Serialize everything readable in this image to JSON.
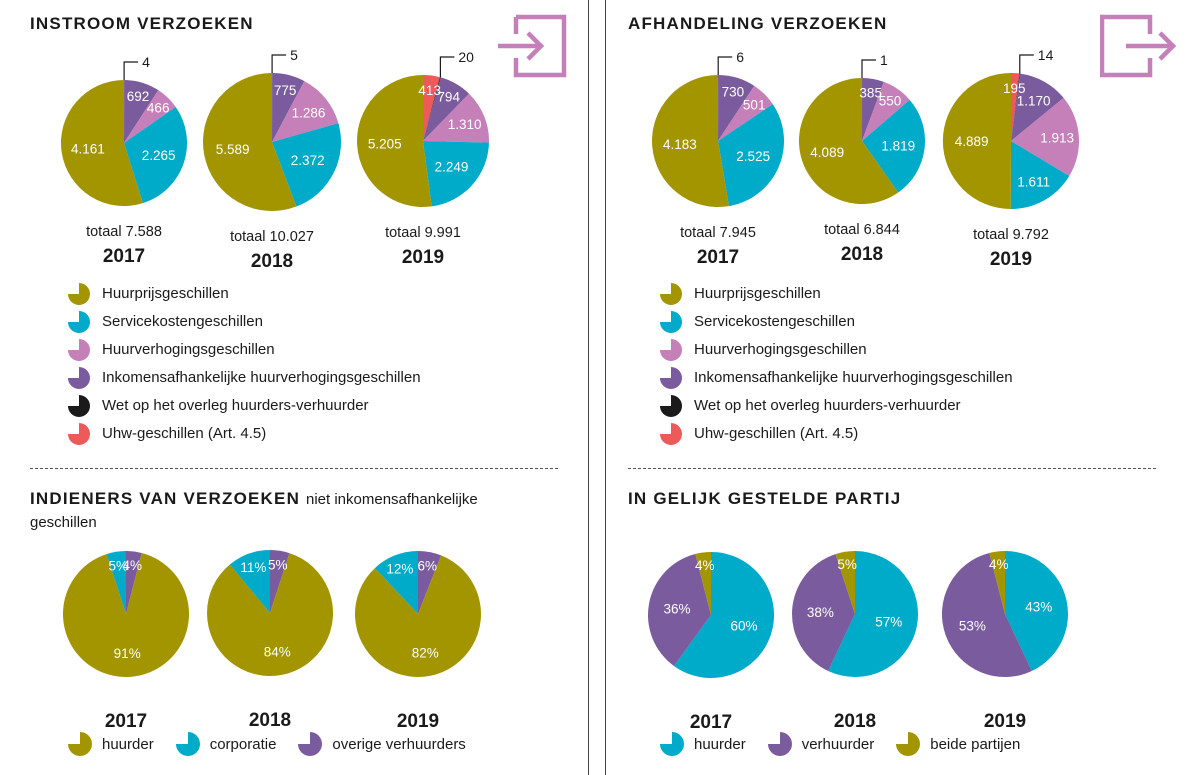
{
  "colors": {
    "huurprijs": "#a39500",
    "servicekosten": "#00aac9",
    "huurverhoging": "#c57fb9",
    "inkomens": "#7a5c9e",
    "wet_overleg": "#1a1a1a",
    "uhw": "#ee5a5a",
    "icon": "#c57fb9"
  },
  "icons": {
    "instroom": "sign-in-icon",
    "afhandeling": "sign-out-icon"
  },
  "sections": {
    "instroom_title": "INSTROOM VERZOEKEN",
    "afhandeling_title": "AFHANDELING VERZOEKEN",
    "indieners_title": "INDIENERS VAN VERZOEKEN",
    "indieners_subtitle": "niet inkomensafhankelijke",
    "indieners_subtitle2": "geschillen",
    "partij_title": "IN GELIJK GESTELDE PARTIJ"
  },
  "legend_types": [
    {
      "label": "Huurprijsgeschillen",
      "color": "#a39500"
    },
    {
      "label": "Servicekostengeschillen",
      "color": "#00aac9"
    },
    {
      "label": "Huurverhogingsgeschillen",
      "color": "#c57fb9"
    },
    {
      "label": "Inkomensafhankelijke huurverhogingsgeschillen",
      "color": "#7a5c9e"
    },
    {
      "label": "Wet op het overleg huurders-verhuurder",
      "color": "#1a1a1a"
    },
    {
      "label": "Uhw-geschillen (Art. 4.5)",
      "color": "#ee5a5a"
    }
  ],
  "legend_indieners": [
    {
      "label": "huurder",
      "color": "#a39500"
    },
    {
      "label": "corporatie",
      "color": "#00aac9"
    },
    {
      "label": "overige verhuurders",
      "color": "#7a5c9e"
    }
  ],
  "legend_partij": [
    {
      "label": "huurder",
      "color": "#00aac9"
    },
    {
      "label": "verhuurder",
      "color": "#7a5c9e"
    },
    {
      "label": "beide partijen",
      "color": "#a39500"
    }
  ],
  "chart_data": [
    {
      "type": "pie",
      "title": "INSTROOM VERZOEKEN",
      "pies": [
        {
          "year": "2017",
          "total": "totaal 7.588",
          "slices": [
            {
              "series": "Wet op het overleg huurders-verhuurder",
              "value": 4,
              "label": "4",
              "color": "#1a1a1a"
            },
            {
              "series": "Inkomensafhankelijke huurverhogingsgeschillen",
              "value": 692,
              "label": "692",
              "color": "#7a5c9e"
            },
            {
              "series": "Huurverhogingsgeschillen",
              "value": 466,
              "label": "466",
              "color": "#c57fb9"
            },
            {
              "series": "Servicekostengeschillen",
              "value": 2265,
              "label": "2.265",
              "color": "#00aac9"
            },
            {
              "series": "Huurprijsgeschillen",
              "value": 4161,
              "label": "4.161",
              "color": "#a39500"
            }
          ]
        },
        {
          "year": "2018",
          "total": "totaal 10.027",
          "slices": [
            {
              "series": "Wet op het overleg huurders-verhuurder",
              "value": 5,
              "label": "5",
              "color": "#1a1a1a"
            },
            {
              "series": "Inkomensafhankelijke huurverhogingsgeschillen",
              "value": 775,
              "label": "775",
              "color": "#7a5c9e"
            },
            {
              "series": "Huurverhogingsgeschillen",
              "value": 1286,
              "label": "1.286",
              "color": "#c57fb9"
            },
            {
              "series": "Servicekostengeschillen",
              "value": 2372,
              "label": "2.372",
              "color": "#00aac9"
            },
            {
              "series": "Huurprijsgeschillen",
              "value": 5589,
              "label": "5.589",
              "color": "#a39500"
            }
          ]
        },
        {
          "year": "2019",
          "total": "totaal 9.991",
          "slices": [
            {
              "series": "Uhw-geschillen (Art. 4.5)",
              "value": 413,
              "label": "413",
              "color": "#ee5a5a"
            },
            {
              "series": "Wet op het overleg huurders-verhuurder",
              "value": 20,
              "label": "20",
              "color": "#1a1a1a"
            },
            {
              "series": "Inkomensafhankelijke huurverhogingsgeschillen",
              "value": 794,
              "label": "794",
              "color": "#7a5c9e"
            },
            {
              "series": "Huurverhogingsgeschillen",
              "value": 1310,
              "label": "1.310",
              "color": "#c57fb9"
            },
            {
              "series": "Servicekostengeschillen",
              "value": 2249,
              "label": "2.249",
              "color": "#00aac9"
            },
            {
              "series": "Huurprijsgeschillen",
              "value": 5205,
              "label": "5.205",
              "color": "#a39500"
            }
          ]
        }
      ]
    },
    {
      "type": "pie",
      "title": "AFHANDELING VERZOEKEN",
      "pies": [
        {
          "year": "2017",
          "total": "totaal 7.945",
          "slices": [
            {
              "series": "Wet op het overleg huurders-verhuurder",
              "value": 6,
              "label": "6",
              "color": "#1a1a1a"
            },
            {
              "series": "Inkomensafhankelijke huurverhogingsgeschillen",
              "value": 730,
              "label": "730",
              "color": "#7a5c9e"
            },
            {
              "series": "Huurverhogingsgeschillen",
              "value": 501,
              "label": "501",
              "color": "#c57fb9"
            },
            {
              "series": "Servicekostengeschillen",
              "value": 2525,
              "label": "2.525",
              "color": "#00aac9"
            },
            {
              "series": "Huurprijsgeschillen",
              "value": 4183,
              "label": "4.183",
              "color": "#a39500"
            }
          ]
        },
        {
          "year": "2018",
          "total": "totaal 6.844",
          "slices": [
            {
              "series": "Wet op het overleg huurders-verhuurder",
              "value": 1,
              "label": "1",
              "color": "#1a1a1a"
            },
            {
              "series": "Inkomensafhankelijke huurverhogingsgeschillen",
              "value": 385,
              "label": "385",
              "color": "#7a5c9e"
            },
            {
              "series": "Huurverhogingsgeschillen",
              "value": 550,
              "label": "550",
              "color": "#c57fb9"
            },
            {
              "series": "Servicekostengeschillen",
              "value": 1819,
              "label": "1.819",
              "color": "#00aac9"
            },
            {
              "series": "Huurprijsgeschillen",
              "value": 4089,
              "label": "4.089",
              "color": "#a39500"
            }
          ]
        },
        {
          "year": "2019",
          "total": "totaal 9.792",
          "slices": [
            {
              "series": "Uhw-geschillen (Art. 4.5)",
              "value": 195,
              "label": "195",
              "color": "#ee5a5a"
            },
            {
              "series": "Wet op het overleg huurders-verhuurder",
              "value": 14,
              "label": "14",
              "color": "#1a1a1a"
            },
            {
              "series": "Inkomensafhankelijke huurverhogingsgeschillen",
              "value": 1170,
              "label": "1.170",
              "color": "#7a5c9e"
            },
            {
              "series": "Huurverhogingsgeschillen",
              "value": 1913,
              "label": "1.913",
              "color": "#c57fb9"
            },
            {
              "series": "Servicekostengeschillen",
              "value": 1611,
              "label": "1.611",
              "color": "#00aac9"
            },
            {
              "series": "Huurprijsgeschillen",
              "value": 4889,
              "label": "4.889",
              "color": "#a39500"
            }
          ]
        }
      ]
    },
    {
      "type": "pie",
      "title": "INDIENERS VAN VERZOEKEN",
      "pies": [
        {
          "year": "2017",
          "slices": [
            {
              "series": "overige verhuurders",
              "value": 4,
              "label": "4%",
              "color": "#7a5c9e"
            },
            {
              "series": "huurder",
              "value": 91,
              "label": "91%",
              "color": "#a39500"
            },
            {
              "series": "corporatie",
              "value": 5,
              "label": "5%",
              "color": "#00aac9"
            }
          ]
        },
        {
          "year": "2018",
          "slices": [
            {
              "series": "overige verhuurders",
              "value": 5,
              "label": "5%",
              "color": "#7a5c9e"
            },
            {
              "series": "huurder",
              "value": 84,
              "label": "84%",
              "color": "#a39500"
            },
            {
              "series": "corporatie",
              "value": 11,
              "label": "11%",
              "color": "#00aac9"
            }
          ]
        },
        {
          "year": "2019",
          "slices": [
            {
              "series": "overige verhuurders",
              "value": 6,
              "label": "6%",
              "color": "#7a5c9e"
            },
            {
              "series": "huurder",
              "value": 82,
              "label": "82%",
              "color": "#a39500"
            },
            {
              "series": "corporatie",
              "value": 12,
              "label": "12%",
              "color": "#00aac9"
            }
          ]
        }
      ]
    },
    {
      "type": "pie",
      "title": "IN GELIJK GESTELDE PARTIJ",
      "pies": [
        {
          "year": "2017",
          "slices": [
            {
              "series": "huurder",
              "value": 60,
              "label": "60%",
              "color": "#00aac9"
            },
            {
              "series": "verhuurder",
              "value": 36,
              "label": "36%",
              "color": "#7a5c9e"
            },
            {
              "series": "beide partijen",
              "value": 4,
              "label": "4%",
              "color": "#a39500"
            }
          ]
        },
        {
          "year": "2018",
          "slices": [
            {
              "series": "huurder",
              "value": 57,
              "label": "57%",
              "color": "#00aac9"
            },
            {
              "series": "verhuurder",
              "value": 38,
              "label": "38%",
              "color": "#7a5c9e"
            },
            {
              "series": "beide partijen",
              "value": 5,
              "label": "5%",
              "color": "#a39500"
            }
          ]
        },
        {
          "year": "2019",
          "slices": [
            {
              "series": "huurder",
              "value": 43,
              "label": "43%",
              "color": "#00aac9"
            },
            {
              "series": "verhuurder",
              "value": 53,
              "label": "53%",
              "color": "#7a5c9e"
            },
            {
              "series": "beide partijen",
              "value": 4,
              "label": "4%",
              "color": "#a39500"
            }
          ]
        }
      ]
    }
  ]
}
